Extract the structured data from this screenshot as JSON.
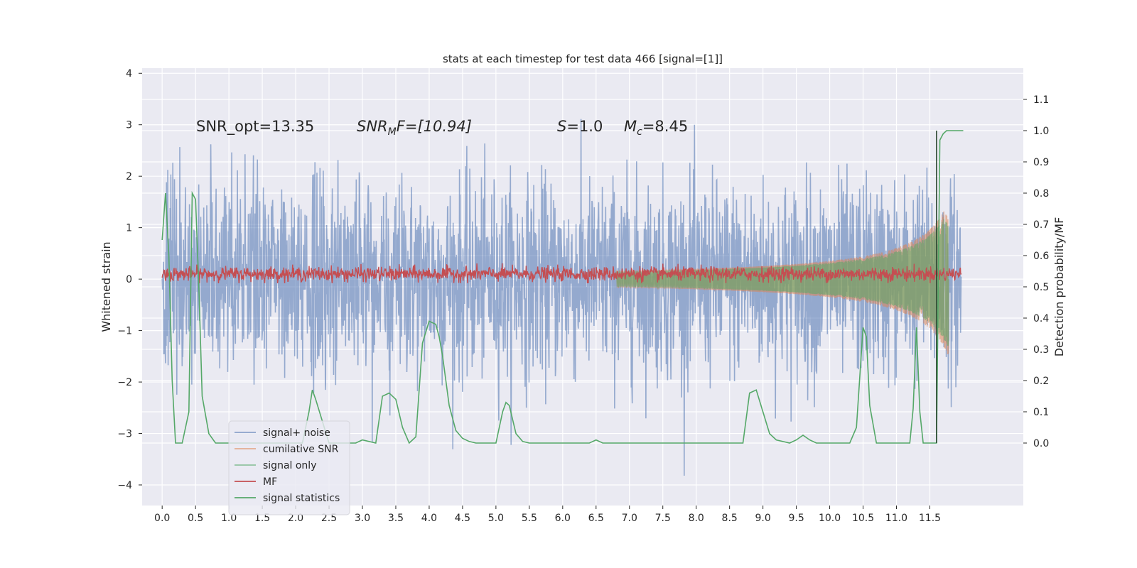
{
  "chart_data": {
    "type": "line",
    "title": "stats at each timestep for test data 466 [signal=[1]]",
    "xlabel": "",
    "ylabel": "Whitened strain",
    "y2label": "Detection probability/MF",
    "xlim": [
      -0.3,
      12.9
    ],
    "ylim": [
      -4.4,
      4.1
    ],
    "y2lim": [
      -0.2,
      1.2
    ],
    "x_ticks": [
      "0.0",
      "0.5",
      "1.0",
      "1.5",
      "2.0",
      "2.5",
      "3.0",
      "3.5",
      "4.0",
      "4.5",
      "5.0",
      "5.5",
      "6.0",
      "6.5",
      "7.0",
      "7.5",
      "8.0",
      "8.5",
      "9.0",
      "9.5",
      "10.0",
      "10.5",
      "11.0",
      "11.5"
    ],
    "y_ticks": [
      "4",
      "3",
      "2",
      "1",
      "0",
      "−1",
      "−2",
      "−3",
      "−4"
    ],
    "y2_ticks": [
      "1.1",
      "1.0",
      "0.9",
      "0.8",
      "0.7",
      "0.6",
      "0.5",
      "0.4",
      "0.3",
      "0.2",
      "0.1",
      "0.0"
    ],
    "grid": true,
    "legend_placement": "lower-left",
    "annotations": {
      "snr_opt": "SNR_opt=13.35",
      "snr_mf_base": "SNR",
      "snr_mf_sub": "M",
      "snr_mf_rest": "F=[10.94]",
      "s_base": "S",
      "s_rest": "=1.0",
      "mc_base": "M",
      "mc_sub": "c",
      "mc_rest": "=8.45"
    },
    "series": [
      {
        "name": "signal+ noise",
        "color": "#4c72b0",
        "axis": "left",
        "description_range": [
          -4.0,
          3.7
        ]
      },
      {
        "name": "cumilative SNR",
        "color": "#dd8452",
        "axis": "left",
        "chirp_amplitude_max": 1.5
      },
      {
        "name": "signal only",
        "color": "#55a868",
        "axis": "left",
        "chirp_amplitude_max": 1.4
      },
      {
        "name": "MF",
        "color": "#c44e52",
        "axis": "left",
        "band": [
          -0.05,
          0.25
        ]
      },
      {
        "name": "signal statistics",
        "color": "#55a868",
        "axis": "right",
        "x": [
          0.0,
          0.05,
          0.1,
          0.15,
          0.2,
          0.3,
          0.4,
          0.45,
          0.5,
          0.55,
          0.6,
          0.7,
          0.8,
          1.0,
          1.3,
          1.6,
          1.9,
          2.1,
          2.2,
          2.25,
          2.3,
          2.4,
          2.5,
          2.7,
          2.9,
          3.0,
          3.2,
          3.3,
          3.4,
          3.5,
          3.6,
          3.7,
          3.8,
          3.9,
          4.0,
          4.1,
          4.15,
          4.2,
          4.3,
          4.4,
          4.5,
          4.6,
          4.7,
          4.8,
          5.0,
          5.1,
          5.15,
          5.2,
          5.3,
          5.4,
          5.5,
          5.6,
          5.8,
          6.0,
          6.2,
          6.4,
          6.5,
          6.6,
          6.7,
          7.0,
          7.5,
          8.0,
          8.5,
          8.7,
          8.8,
          8.9,
          9.0,
          9.1,
          9.2,
          9.4,
          9.5,
          9.6,
          9.7,
          9.8,
          10.0,
          10.3,
          10.4,
          10.5,
          10.55,
          10.6,
          10.7,
          10.8,
          11.0,
          11.2,
          11.25,
          11.3,
          11.35,
          11.4,
          11.5,
          11.6,
          11.65,
          11.7,
          11.75,
          11.8,
          11.9,
          11.95,
          12.0
        ],
        "values": [
          0.65,
          0.8,
          0.6,
          0.2,
          0.0,
          0.0,
          0.1,
          0.8,
          0.78,
          0.5,
          0.15,
          0.03,
          0.0,
          0.0,
          0.0,
          0.0,
          0.0,
          0.0,
          0.1,
          0.17,
          0.14,
          0.07,
          0.0,
          0.0,
          0.0,
          0.01,
          0.0,
          0.15,
          0.16,
          0.14,
          0.05,
          0.0,
          0.02,
          0.32,
          0.39,
          0.38,
          0.34,
          0.28,
          0.12,
          0.04,
          0.015,
          0.005,
          0.0,
          0.0,
          0.0,
          0.1,
          0.13,
          0.12,
          0.03,
          0.005,
          0.0,
          0.0,
          0.0,
          0.0,
          0.0,
          0.0,
          0.01,
          0.0,
          0.0,
          0.0,
          0.0,
          0.0,
          0.0,
          0.0,
          0.16,
          0.17,
          0.1,
          0.03,
          0.01,
          0.0,
          0.01,
          0.025,
          0.01,
          0.0,
          0.0,
          0.0,
          0.05,
          0.37,
          0.34,
          0.12,
          0.0,
          0.0,
          0.0,
          0.0,
          0.11,
          0.37,
          0.1,
          0.0,
          0.0,
          0.0,
          0.97,
          0.99,
          1.0,
          1.0,
          1.0,
          1.0,
          1.0
        ]
      }
    ]
  }
}
